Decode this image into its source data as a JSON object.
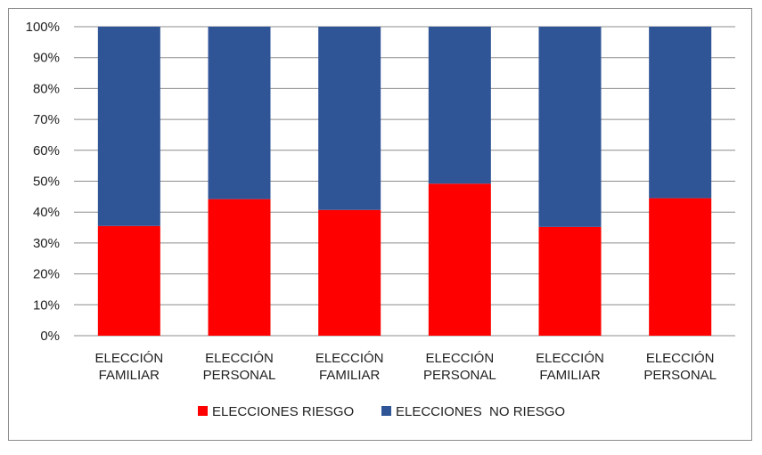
{
  "chart_data": {
    "type": "bar",
    "stacked": true,
    "percent": true,
    "title": "",
    "xlabel": "",
    "ylabel": "",
    "ylim": [
      0,
      100
    ],
    "yticks": [
      "0%",
      "10%",
      "20%",
      "30%",
      "40%",
      "50%",
      "60%",
      "70%",
      "80%",
      "90%",
      "100%"
    ],
    "categories": [
      [
        "ELECCIÓN",
        "FAMILIAR"
      ],
      [
        "ELECCIÓN",
        "PERSONAL"
      ],
      [
        "ELECCIÓN",
        "FAMILIAR"
      ],
      [
        "ELECCIÓN",
        "PERSONAL"
      ],
      [
        "ELECCIÓN",
        "FAMILIAR"
      ],
      [
        "ELECCIÓN",
        "PERSONAL"
      ]
    ],
    "series": [
      {
        "name": "ELECCIONES RIESGO",
        "color": "#ff0000",
        "values": [
          35.5,
          44.2,
          40.7,
          49.2,
          35.2,
          44.5
        ]
      },
      {
        "name": "ELECCIONES  NO RIESGO",
        "color": "#2f5597",
        "values": [
          64.5,
          55.8,
          59.3,
          50.8,
          64.8,
          55.5
        ]
      }
    ],
    "grid": true,
    "legend_position": "bottom"
  }
}
